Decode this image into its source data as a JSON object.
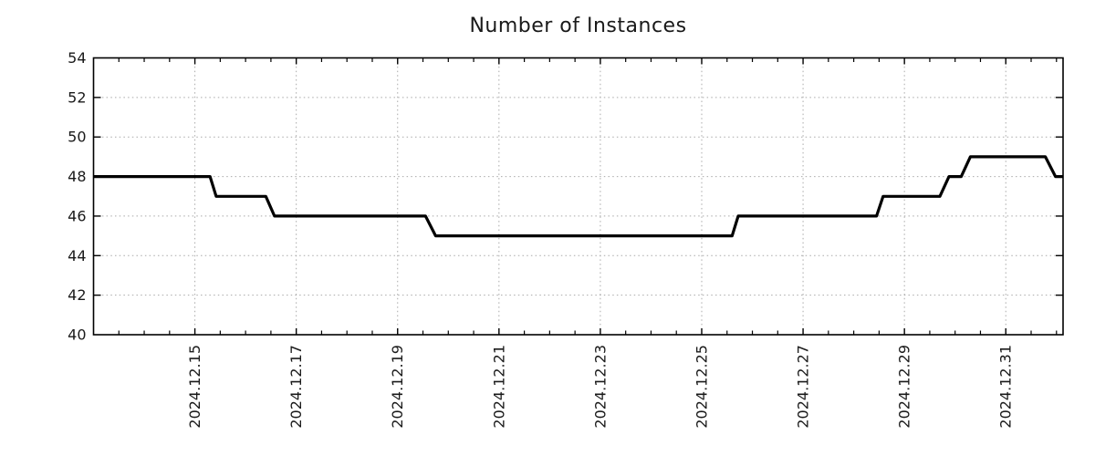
{
  "title": "Number of Instances",
  "chart_data": {
    "type": "line",
    "title": "Number of Instances",
    "line_style": "step",
    "legend": "none",
    "grid": "dotted",
    "colors": {
      "line": "#000000",
      "grid": "#a9a9a9",
      "border": "#000000",
      "text": "#1a1a1a",
      "background": "#ffffff"
    },
    "x_axis": {
      "unit": "date",
      "domain_days": [
        13.0,
        32.13
      ],
      "minor_tick_step_days": 0.5,
      "major_ticks": [
        {
          "day": 15,
          "label": "2024.12.15"
        },
        {
          "day": 17,
          "label": "2024.12.17"
        },
        {
          "day": 19,
          "label": "2024.12.19"
        },
        {
          "day": 21,
          "label": "2024.12.21"
        },
        {
          "day": 23,
          "label": "2024.12.23"
        },
        {
          "day": 25,
          "label": "2024.12.25"
        },
        {
          "day": 27,
          "label": "2024.12.27"
        },
        {
          "day": 29,
          "label": "2024.12.29"
        },
        {
          "day": 31,
          "label": "2024.12.31"
        }
      ]
    },
    "y_axis": {
      "domain": [
        40,
        54
      ],
      "ticks": [
        40,
        42,
        44,
        46,
        48,
        50,
        52,
        54
      ],
      "gridline_ticks": [
        42,
        44,
        46,
        48,
        50,
        52
      ]
    },
    "series": [
      {
        "name": "instances",
        "points_day_value": [
          [
            13.0,
            48
          ],
          [
            15.3,
            48
          ],
          [
            15.42,
            47
          ],
          [
            16.4,
            47
          ],
          [
            16.57,
            46
          ],
          [
            19.55,
            46
          ],
          [
            19.75,
            45
          ],
          [
            25.6,
            45
          ],
          [
            25.72,
            46
          ],
          [
            28.45,
            46
          ],
          [
            28.58,
            47
          ],
          [
            29.7,
            47
          ],
          [
            29.88,
            48
          ],
          [
            30.12,
            48
          ],
          [
            30.3,
            49
          ],
          [
            31.78,
            49
          ],
          [
            31.98,
            48
          ],
          [
            32.13,
            48
          ]
        ]
      }
    ]
  }
}
